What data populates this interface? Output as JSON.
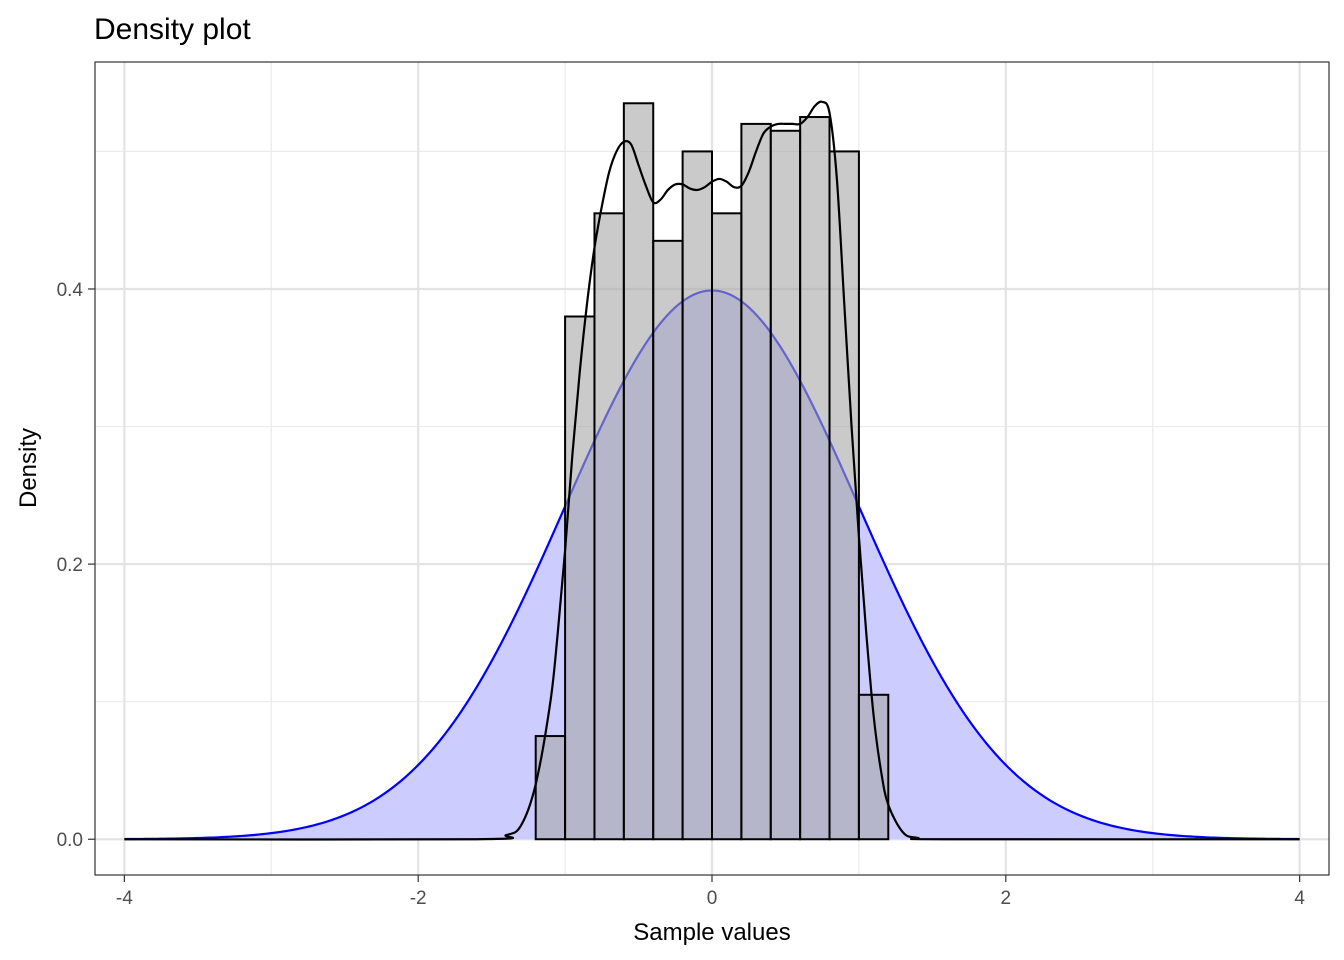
{
  "chart_data": {
    "type": "histogram",
    "title": "Density plot",
    "xlabel": "Sample values",
    "ylabel": "Density",
    "xlim": [
      -4.2,
      4.2
    ],
    "ylim": [
      -0.026,
      0.565
    ],
    "x_ticks": [
      -4,
      -2,
      0,
      2,
      4
    ],
    "x_tick_labels": [
      "-4",
      "-2",
      "0",
      "2",
      "4"
    ],
    "x_minor_ticks": [
      -3,
      -1,
      1,
      3
    ],
    "y_ticks": [
      0.0,
      0.2,
      0.4
    ],
    "y_tick_labels": [
      "0.0",
      "0.2",
      "0.4"
    ],
    "y_minor_ticks": [
      0.1,
      0.3,
      0.5
    ],
    "grid": true,
    "histogram": {
      "bin_width": 0.2,
      "fill": "#a6a6a6",
      "stroke": "#000000",
      "bins": [
        {
          "x0": -1.2,
          "x1": -1.0,
          "density": 0.075
        },
        {
          "x0": -1.0,
          "x1": -0.8,
          "density": 0.38
        },
        {
          "x0": -0.8,
          "x1": -0.6,
          "density": 0.455
        },
        {
          "x0": -0.6,
          "x1": -0.4,
          "density": 0.535
        },
        {
          "x0": -0.4,
          "x1": -0.2,
          "density": 0.435
        },
        {
          "x0": -0.2,
          "x1": 0.0,
          "density": 0.5
        },
        {
          "x0": 0.0,
          "x1": 0.2,
          "density": 0.455
        },
        {
          "x0": 0.2,
          "x1": 0.4,
          "density": 0.52
        },
        {
          "x0": 0.4,
          "x1": 0.6,
          "density": 0.515
        },
        {
          "x0": 0.6,
          "x1": 0.8,
          "density": 0.525
        },
        {
          "x0": 0.8,
          "x1": 1.0,
          "density": 0.5
        },
        {
          "x0": 1.0,
          "x1": 1.2,
          "density": 0.105
        }
      ]
    },
    "kernel_density": {
      "color": "#000000",
      "x": [
        -4.0,
        -1.6,
        -1.4,
        -1.3,
        -1.2,
        -1.1,
        -1.05,
        -1.0,
        -0.95,
        -0.9,
        -0.85,
        -0.8,
        -0.75,
        -0.7,
        -0.65,
        -0.6,
        -0.55,
        -0.5,
        -0.45,
        -0.4,
        -0.35,
        -0.3,
        -0.25,
        -0.2,
        -0.15,
        -0.1,
        -0.05,
        0.0,
        0.05,
        0.1,
        0.15,
        0.2,
        0.25,
        0.3,
        0.35,
        0.4,
        0.45,
        0.5,
        0.55,
        0.6,
        0.65,
        0.7,
        0.75,
        0.8,
        0.85,
        0.9,
        0.95,
        1.0,
        1.05,
        1.1,
        1.15,
        1.2,
        1.3,
        1.4,
        1.6,
        4.0
      ],
      "y": [
        0.0,
        0.0,
        0.003,
        0.01,
        0.04,
        0.1,
        0.15,
        0.21,
        0.28,
        0.34,
        0.39,
        0.43,
        0.46,
        0.485,
        0.5,
        0.507,
        0.505,
        0.49,
        0.475,
        0.463,
        0.465,
        0.472,
        0.476,
        0.476,
        0.473,
        0.472,
        0.474,
        0.478,
        0.48,
        0.478,
        0.474,
        0.475,
        0.485,
        0.5,
        0.513,
        0.518,
        0.52,
        0.52,
        0.52,
        0.52,
        0.525,
        0.533,
        0.536,
        0.528,
        0.48,
        0.39,
        0.3,
        0.22,
        0.15,
        0.09,
        0.05,
        0.025,
        0.005,
        0.001,
        0.0,
        0.0
      ]
    },
    "normal_curve": {
      "mean": 0,
      "sd": 1,
      "x_range": [
        -4,
        4
      ],
      "line_color": "#0000ff",
      "fill_color": "#ccccff"
    }
  }
}
